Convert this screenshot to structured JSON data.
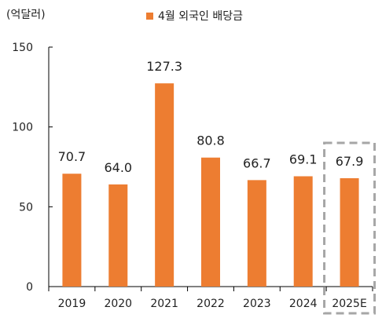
{
  "chart_data": {
    "type": "bar",
    "unit_label": "(억달러)",
    "categories": [
      "2019",
      "2020",
      "2021",
      "2022",
      "2023",
      "2024",
      "2025E"
    ],
    "series": [
      {
        "name": "4월 외국인 배당금",
        "values": [
          70.7,
          64.0,
          127.3,
          80.8,
          66.7,
          69.1,
          67.9
        ]
      }
    ],
    "value_labels": [
      "70.7",
      "64.0",
      "127.3",
      "80.8",
      "66.7",
      "69.1",
      "67.9"
    ],
    "ylim": [
      0,
      150
    ],
    "yticks": [
      "0",
      "50",
      "100",
      "150"
    ],
    "highlighted_category": "2025E",
    "grid": false,
    "legend_position": "top-center",
    "colors": {
      "bar": "#ED7D31",
      "axis": "#000000",
      "highlight_box": "#A6A6A6"
    }
  }
}
